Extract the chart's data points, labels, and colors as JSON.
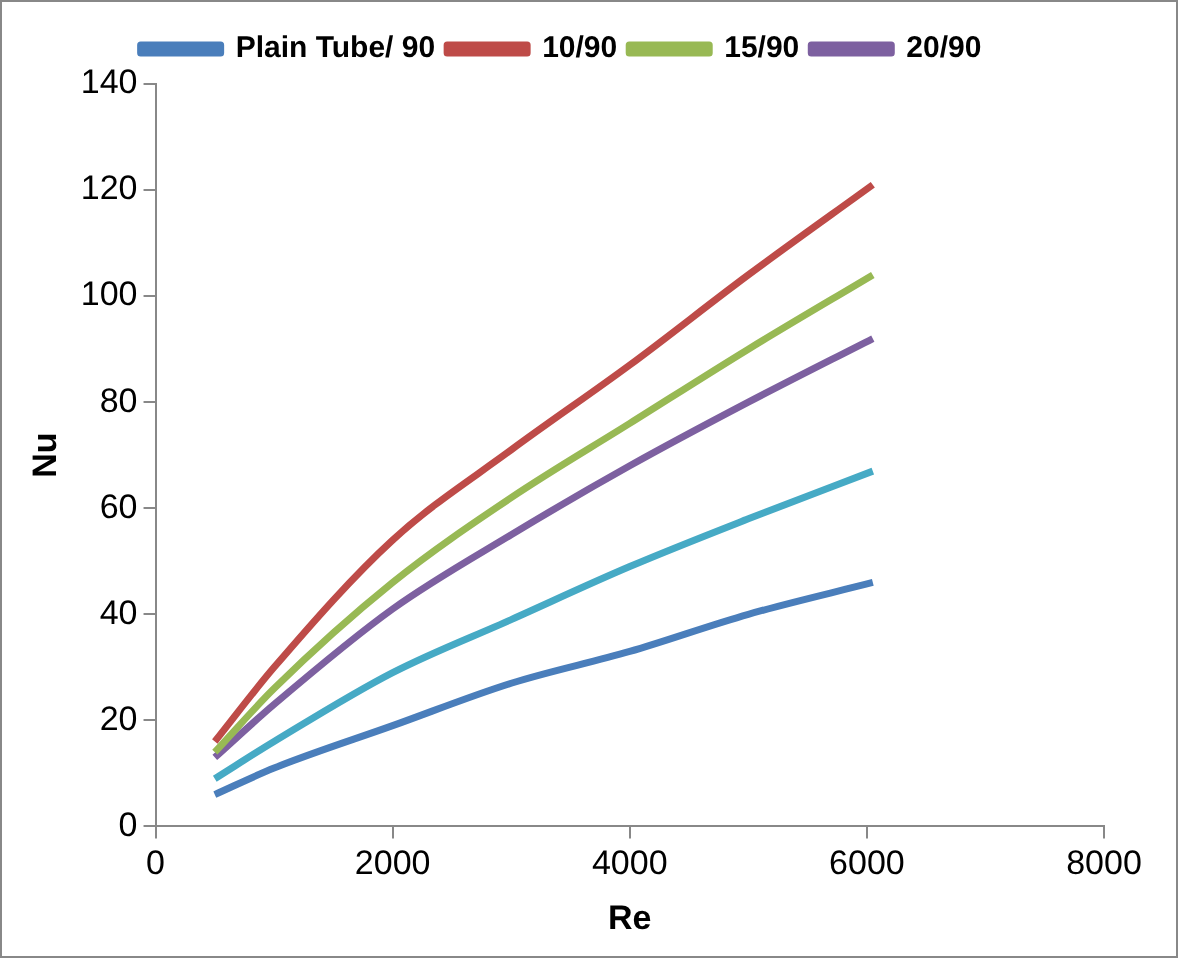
{
  "chart_data": {
    "type": "line",
    "xlabel": "Re",
    "ylabel": "Nu",
    "xlim": [
      0,
      8000
    ],
    "xticks": [
      0,
      2000,
      4000,
      6000,
      8000
    ],
    "ylim": [
      0,
      140
    ],
    "yticks": [
      0,
      20,
      40,
      60,
      80,
      100,
      120,
      140
    ],
    "grid": false,
    "legend": "top",
    "marker": "none",
    "line_style": "solid",
    "x": [
      500,
      1000,
      2000,
      3000,
      4000,
      5000,
      6050
    ],
    "series": [
      {
        "name": "Plain Tube/ 90",
        "color": "#4a7ebb",
        "values": [
          6,
          11,
          19,
          27,
          33,
          40,
          46
        ]
      },
      {
        "name": "10/90",
        "color": "#be4b48",
        "values": [
          16,
          30,
          54,
          71,
          87,
          104,
          121
        ]
      },
      {
        "name": "15/90",
        "color": "#98b954",
        "values": [
          14,
          26,
          46,
          62,
          76,
          90,
          104
        ]
      },
      {
        "name": "20/90",
        "color": "#7d60a0",
        "values": [
          13,
          23,
          41,
          55,
          68,
          80,
          92
        ]
      },
      {
        "color": "#46aac5",
        "values": [
          9,
          16,
          29,
          39,
          49,
          58,
          67
        ]
      }
    ]
  }
}
